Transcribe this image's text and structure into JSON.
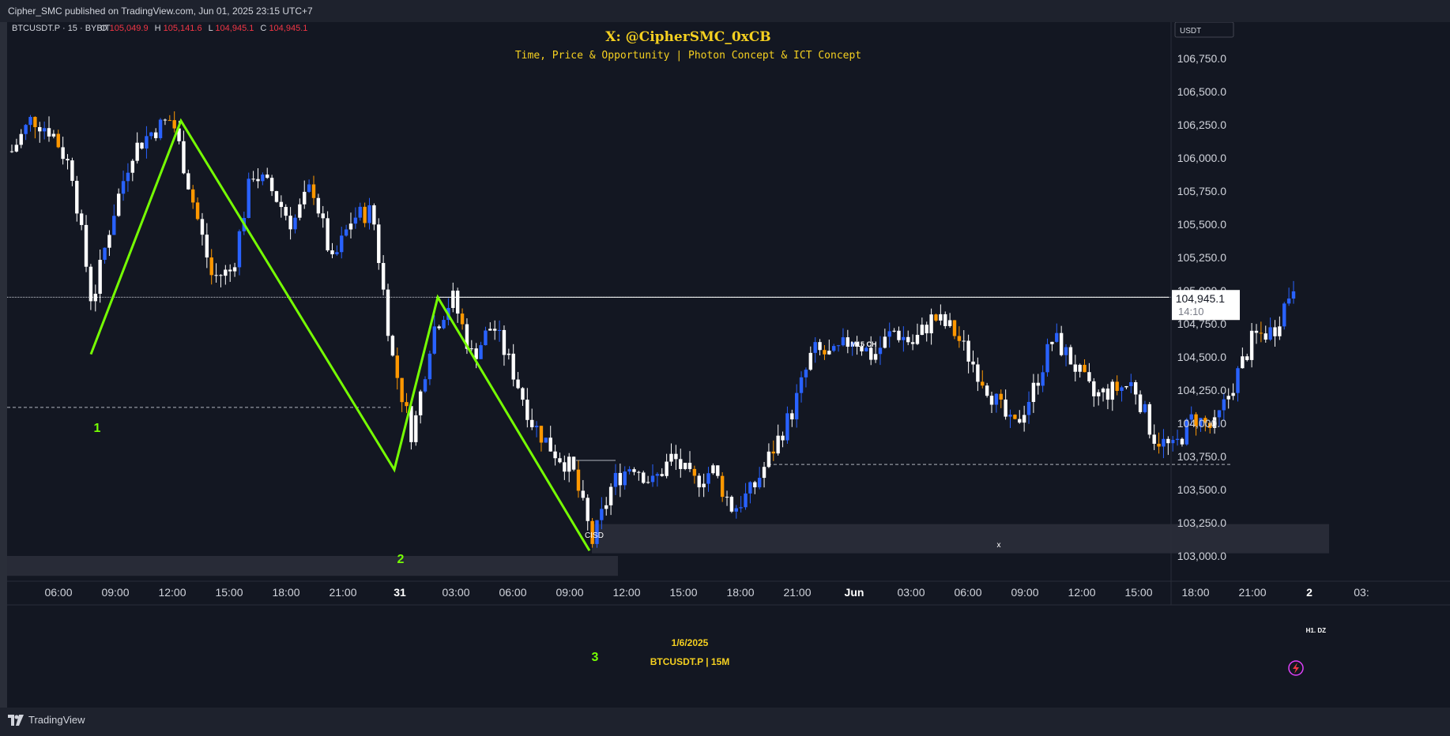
{
  "header": {
    "published_text": "Cipher_SMC published on TradingView.com, Jun 01, 2025 23:15 UTC+7"
  },
  "footer": {
    "brand": "TradingView"
  },
  "legend": {
    "symbol_line": "BTCUSDT.P · 15 · BYBIT",
    "o_label": "O",
    "o_value": "105,049.9",
    "h_label": "H",
    "h_value": "105,141.6",
    "l_label": "L",
    "l_value": "104,945.1",
    "c_label": "C",
    "c_value": "104,945.1"
  },
  "watermark": {
    "handle": "X: @CipherSMC_0xCB",
    "tagline": "Time, Price & Opportunity | Photon Concept & ICT Concept",
    "date": "1/6/2025",
    "symbol_tf": "BTCUSDT.P | 15M"
  },
  "price_axis": {
    "currency": "USDT",
    "last_price": "104,945.1",
    "countdown": "14:10"
  },
  "colors": {
    "background": "#131722",
    "bull_candle": "#2962ff",
    "bear_candle": "#ff9800",
    "neutral_candle": "#ffffff",
    "zigzag": "#76ff03",
    "watermark": "#f5d020",
    "sell_red": "#f23645"
  },
  "annotations": {
    "m15_label": "M15 CH",
    "cisd_label": "CISD",
    "x_label": "x",
    "zone_label": "H1. DZ",
    "points": [
      "1",
      "2",
      "3"
    ]
  },
  "chart_data": {
    "type": "candlestick",
    "symbol": "BTCUSDT.P",
    "interval": "15",
    "exchange": "BYBIT",
    "ylim": [
      102900,
      107000
    ],
    "y_ticks": [
      103000,
      103250,
      103500,
      103750,
      104000,
      104250,
      104500,
      104750,
      105000,
      105250,
      105500,
      105750,
      106000,
      106250,
      106500,
      106750
    ],
    "y_tick_labels": [
      "103,000.0",
      "103,250.0",
      "103,500.0",
      "103,750.0",
      "104,000.0",
      "104,250.0",
      "104,500.0",
      "104,750.0",
      "105,000.0",
      "105,250.0",
      "105,500.0",
      "105,750.0",
      "106,000.0",
      "106,250.0",
      "106,500.0",
      "106,750.0"
    ],
    "time_labels": [
      "06:00",
      "09:00",
      "12:00",
      "15:00",
      "18:00",
      "21:00",
      "31",
      "03:00",
      "06:00",
      "09:00",
      "12:00",
      "15:00",
      "18:00",
      "21:00",
      "Jun",
      "03:00",
      "06:00",
      "09:00",
      "12:00",
      "15:00",
      "18:00",
      "21:00",
      "2",
      "03:"
    ],
    "price_path": [
      {
        "t": 0,
        "p": 106050
      },
      {
        "t": 1,
        "p": 106300
      },
      {
        "t": 2,
        "p": 106200
      },
      {
        "t": 3,
        "p": 105900
      },
      {
        "t": 4,
        "p": 104900
      },
      {
        "t": 5,
        "p": 105550
      },
      {
        "t": 6,
        "p": 106050
      },
      {
        "t": 7,
        "p": 106200
      },
      {
        "t": 8,
        "p": 106300
      },
      {
        "t": 9,
        "p": 105700
      },
      {
        "t": 10,
        "p": 105100
      },
      {
        "t": 11,
        "p": 105150
      },
      {
        "t": 12,
        "p": 105900
      },
      {
        "t": 13,
        "p": 105750
      },
      {
        "t": 14,
        "p": 105500
      },
      {
        "t": 15,
        "p": 105800
      },
      {
        "t": 16,
        "p": 105200
      },
      {
        "t": 17,
        "p": 105550
      },
      {
        "t": 18,
        "p": 105600
      },
      {
        "t": 19,
        "p": 104500
      },
      {
        "t": 20,
        "p": 103900
      },
      {
        "t": 21,
        "p": 104700
      },
      {
        "t": 22,
        "p": 104950
      },
      {
        "t": 23,
        "p": 104500
      },
      {
        "t": 24,
        "p": 104750
      },
      {
        "t": 25,
        "p": 104400
      },
      {
        "t": 26,
        "p": 104000
      },
      {
        "t": 27,
        "p": 103800
      },
      {
        "t": 28,
        "p": 103650
      },
      {
        "t": 29,
        "p": 103100
      },
      {
        "t": 30,
        "p": 103550
      },
      {
        "t": 31,
        "p": 103700
      },
      {
        "t": 32,
        "p": 103550
      },
      {
        "t": 33,
        "p": 103750
      },
      {
        "t": 34,
        "p": 103550
      },
      {
        "t": 35,
        "p": 103650
      },
      {
        "t": 36,
        "p": 103350
      },
      {
        "t": 37,
        "p": 103500
      },
      {
        "t": 38,
        "p": 103800
      },
      {
        "t": 39,
        "p": 104100
      },
      {
        "t": 40,
        "p": 104550
      },
      {
        "t": 41,
        "p": 104500
      },
      {
        "t": 42,
        "p": 104650
      },
      {
        "t": 43,
        "p": 104500
      },
      {
        "t": 44,
        "p": 104700
      },
      {
        "t": 45,
        "p": 104600
      },
      {
        "t": 46,
        "p": 104800
      },
      {
        "t": 47,
        "p": 104700
      },
      {
        "t": 48,
        "p": 104450
      },
      {
        "t": 49,
        "p": 104200
      },
      {
        "t": 50,
        "p": 103950
      },
      {
        "t": 51,
        "p": 104250
      },
      {
        "t": 52,
        "p": 104650
      },
      {
        "t": 53,
        "p": 104450
      },
      {
        "t": 54,
        "p": 104200
      },
      {
        "t": 55,
        "p": 104250
      },
      {
        "t": 56,
        "p": 104300
      },
      {
        "t": 57,
        "p": 103900
      },
      {
        "t": 58,
        "p": 103800
      },
      {
        "t": 59,
        "p": 104050
      },
      {
        "t": 60,
        "p": 103950
      },
      {
        "t": 61,
        "p": 104300
      },
      {
        "t": 62,
        "p": 104650
      },
      {
        "t": 63,
        "p": 104700
      },
      {
        "t": 64,
        "p": 105050
      }
    ],
    "horizontal_levels": [
      {
        "label": "M15 CH",
        "price": 104950,
        "style": "solid"
      },
      {
        "label": "",
        "price": 104120,
        "style": "dashed"
      },
      {
        "label": "x",
        "price": 103690,
        "style": "dashed"
      },
      {
        "label": "CISD",
        "price": 103720,
        "style": "solid"
      }
    ],
    "zones": [
      {
        "label": "H1. DZ",
        "price_top": 103240,
        "price_bottom": 103020
      },
      {
        "label": "",
        "price_top": 103000,
        "price_bottom": 102850
      }
    ],
    "zigzag_points": [
      {
        "label": "1",
        "price": 104520
      },
      {
        "label": "",
        "price": 106280
      },
      {
        "label": "2",
        "price": 103650
      },
      {
        "label": "",
        "price": 104950
      },
      {
        "label": "3",
        "price": 103040
      }
    ],
    "last_price": 104945.1
  }
}
